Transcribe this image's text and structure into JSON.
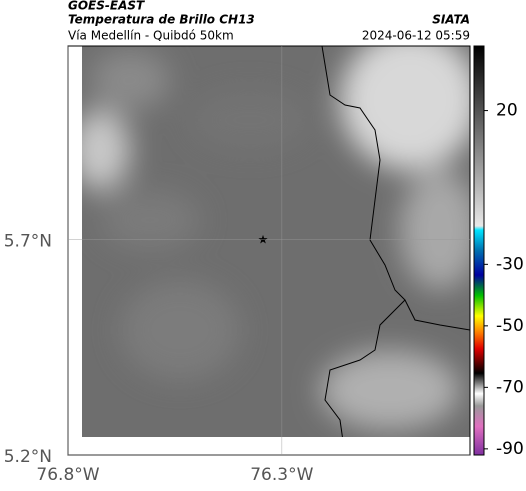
{
  "header": {
    "source": "GOES-EAST",
    "product": "Temperatura de Brillo CH13",
    "route": "Vía Medellín - Quibdó 50km",
    "org": "SIATA",
    "timestamp": "2024-06-12 05:59"
  },
  "map": {
    "xlim": [
      -76.8,
      -75.86
    ],
    "ylim": [
      5.2,
      6.15
    ],
    "xticks": [
      {
        "value": -76.8,
        "label": "76.8°W"
      },
      {
        "value": -76.3,
        "label": "76.3°W"
      }
    ],
    "yticks": [
      {
        "value": 5.2,
        "label": "5.2°N"
      },
      {
        "value": 5.7,
        "label": "5.7°N"
      }
    ]
  },
  "colorbar": {
    "lim": [
      -92,
      41
    ],
    "ticks": [
      20,
      -30,
      -50,
      -70,
      -90
    ]
  }
}
